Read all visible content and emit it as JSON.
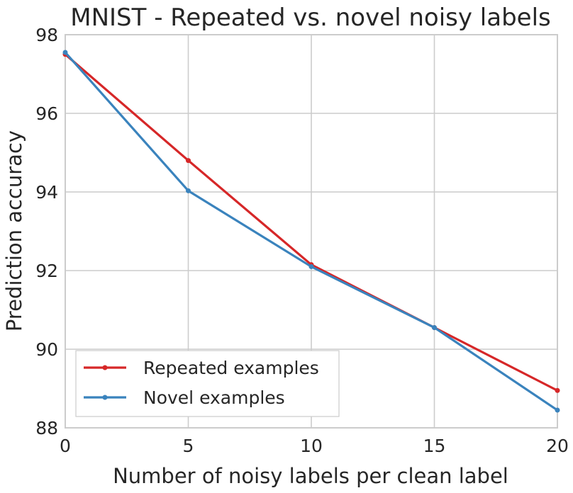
{
  "chart_data": {
    "type": "line",
    "title": "MNIST - Repeated vs. novel noisy labels",
    "xlabel": "Number of noisy labels per clean label",
    "ylabel": "Prediction accuracy",
    "x": [
      0,
      5,
      10,
      15,
      20
    ],
    "xlim": [
      0,
      20
    ],
    "ylim": [
      88,
      98
    ],
    "xticks": [
      0,
      5,
      10,
      15,
      20
    ],
    "yticks": [
      88,
      90,
      92,
      94,
      96,
      98
    ],
    "grid": true,
    "legend_position": "lower-left",
    "series": [
      {
        "name": "Repeated examples",
        "color": "#d62728",
        "values": [
          97.5,
          94.8,
          92.15,
          90.55,
          88.95
        ]
      },
      {
        "name": "Novel examples",
        "color": "#3a83bd",
        "values": [
          97.55,
          94.03,
          92.1,
          90.55,
          88.45
        ]
      }
    ]
  }
}
